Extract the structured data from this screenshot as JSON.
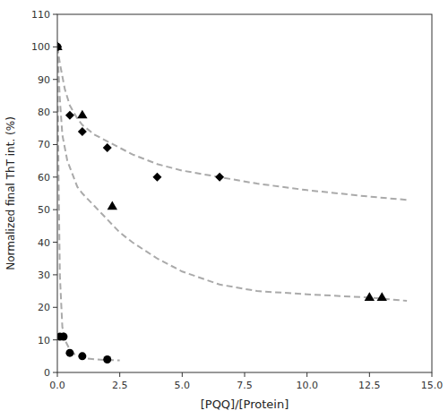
{
  "chart_data": {
    "type": "scatter",
    "x_label": "[PQQ]/[Protein]",
    "y_label": "Normalized final ThT int. (%)",
    "xlim": [
      0,
      15
    ],
    "ylim": [
      0,
      110
    ],
    "xticks": [
      {
        "value": 0.0,
        "label": "0.0"
      },
      2.5,
      {
        "value": 5.0,
        "label": "5.0"
      },
      7.5,
      {
        "value": 10.0,
        "label": "10.0"
      },
      12.5,
      {
        "value": 15.0,
        "label": "15.0"
      }
    ],
    "yticks": [
      0,
      10,
      20,
      30,
      40,
      50,
      60,
      70,
      80,
      90,
      100,
      110
    ],
    "grid": false,
    "series": [
      {
        "type": "line",
        "line_style": "dashed",
        "color": "#aaaaaa",
        "x": [
          0.0,
          0.05,
          0.1,
          0.2,
          0.3,
          0.5,
          0.7,
          1.0,
          1.5,
          2.0,
          2.5
        ],
        "values": [
          100,
          60,
          30,
          14,
          10,
          7,
          5.5,
          4.5,
          4.0,
          3.8,
          3.7
        ]
      },
      {
        "type": "line",
        "line_style": "dashed",
        "color": "#aaaaaa",
        "x": [
          0.0,
          0.1,
          0.3,
          0.5,
          0.8,
          1.0,
          1.5,
          2.0,
          3.0,
          4.0,
          5.0,
          6.5,
          8.0,
          10.0,
          12.5,
          14.0
        ],
        "values": [
          100,
          95,
          87,
          82,
          78,
          76,
          73,
          71,
          67,
          64,
          62,
          60,
          58,
          56,
          54,
          53
        ]
      },
      {
        "type": "line",
        "line_style": "dashed",
        "color": "#aaaaaa",
        "x": [
          0.0,
          0.05,
          0.1,
          0.2,
          0.4,
          0.6,
          0.8,
          1.0,
          1.5,
          2.0,
          2.5,
          3.0,
          4.0,
          5.0,
          6.5,
          8.0,
          10.0,
          12.5,
          14.0
        ],
        "values": [
          100,
          92,
          84,
          73,
          65,
          61,
          57,
          55,
          51,
          47,
          43,
          40,
          35,
          31,
          27,
          25,
          24,
          23,
          22
        ]
      },
      {
        "type": "scatter",
        "marker": "circle",
        "color": "black",
        "x": [
          0.0,
          0.1,
          0.25,
          0.5,
          1.0,
          2.0
        ],
        "values": [
          100,
          11,
          11,
          6,
          5,
          4
        ]
      },
      {
        "type": "scatter",
        "marker": "diamond",
        "color": "black",
        "x": [
          0.0,
          0.5,
          1.0,
          2.0,
          4.0,
          6.5
        ],
        "values": [
          100,
          79,
          74,
          69,
          60,
          60
        ]
      },
      {
        "type": "scatter",
        "marker": "triangle",
        "color": "black",
        "x": [
          0.0,
          1.0,
          2.2,
          12.5,
          13.0
        ],
        "values": [
          100,
          79,
          51,
          23,
          23
        ]
      }
    ]
  }
}
